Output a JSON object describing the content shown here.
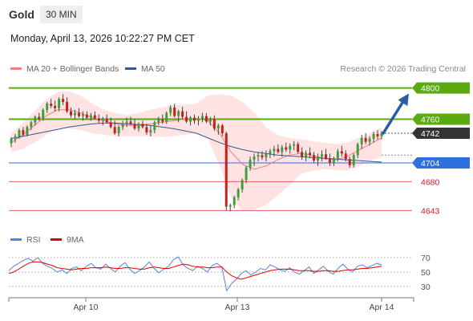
{
  "header": {
    "title": "Gold",
    "timeframe": "30 MIN"
  },
  "timestamp": "Monday, April 13, 2026 10:22:27 PM CET",
  "legend": {
    "ma20_bb": {
      "label": "MA 20 + Bollinger Bands",
      "color": "#f08080"
    },
    "ma50": {
      "label": "MA 50",
      "color": "#34578f"
    }
  },
  "credit": "Research © 2026 Trading Central",
  "rsi_legend": {
    "rsi": {
      "label": "RSI",
      "color": "#5a82d8"
    },
    "ma9": {
      "label": "9MA",
      "color": "#e00000"
    }
  },
  "colors": {
    "up_candle": "#3aa13a",
    "down_candle": "#c81e1e",
    "green_level": "#5aaa10",
    "blue_level": "#2f6fe0",
    "red_level": "#e06060",
    "price_tag": "#333333",
    "arrow": "#2a5d9f",
    "bb_fill": "#ffd9d9"
  },
  "chart_data": [
    {
      "type": "candlestick",
      "title": "Gold",
      "timeframe": "30 MIN",
      "ylim": [
        4630,
        4815
      ],
      "x_ticks": [
        "Apr 10",
        "Apr 13",
        "Apr 14"
      ],
      "levels": [
        {
          "value": 4800,
          "label": "4800",
          "kind": "resistance"
        },
        {
          "value": 4760,
          "label": "4760",
          "kind": "resistance"
        },
        {
          "value": 4742,
          "label": "4742",
          "kind": "last_price"
        },
        {
          "value": 4704,
          "label": "4704",
          "kind": "pivot"
        },
        {
          "value": 4680,
          "label": "4680",
          "kind": "support"
        },
        {
          "value": 4643,
          "label": "4643",
          "kind": "support"
        }
      ],
      "forecast": {
        "from": 4742,
        "to": 4800,
        "direction": "up"
      },
      "ohlc": [
        [
          4729,
          4737,
          4724,
          4735
        ],
        [
          4735,
          4741,
          4730,
          4738
        ],
        [
          4738,
          4748,
          4735,
          4746
        ],
        [
          4746,
          4750,
          4738,
          4740
        ],
        [
          4740,
          4752,
          4738,
          4750
        ],
        [
          4750,
          4758,
          4746,
          4756
        ],
        [
          4756,
          4765,
          4752,
          4763
        ],
        [
          4763,
          4768,
          4758,
          4761
        ],
        [
          4761,
          4774,
          4758,
          4772
        ],
        [
          4772,
          4782,
          4768,
          4780
        ],
        [
          4780,
          4786,
          4774,
          4777
        ],
        [
          4777,
          4784,
          4770,
          4774
        ],
        [
          4774,
          4788,
          4770,
          4786
        ],
        [
          4786,
          4792,
          4778,
          4782
        ],
        [
          4782,
          4788,
          4768,
          4770
        ],
        [
          4770,
          4775,
          4762,
          4765
        ],
        [
          4765,
          4772,
          4760,
          4768
        ],
        [
          4768,
          4774,
          4762,
          4764
        ],
        [
          4764,
          4770,
          4758,
          4766
        ],
        [
          4766,
          4770,
          4760,
          4762
        ],
        [
          4762,
          4768,
          4758,
          4765
        ],
        [
          4765,
          4770,
          4760,
          4761
        ],
        [
          4761,
          4766,
          4755,
          4758
        ],
        [
          4758,
          4763,
          4752,
          4760
        ],
        [
          4760,
          4766,
          4755,
          4756
        ],
        [
          4756,
          4762,
          4748,
          4750
        ],
        [
          4750,
          4758,
          4740,
          4742
        ],
        [
          4742,
          4752,
          4738,
          4750
        ],
        [
          4750,
          4758,
          4746,
          4755
        ],
        [
          4755,
          4762,
          4750,
          4757
        ],
        [
          4757,
          4763,
          4752,
          4754
        ],
        [
          4754,
          4760,
          4746,
          4748
        ],
        [
          4748,
          4756,
          4744,
          4754
        ],
        [
          4754,
          4758,
          4748,
          4750
        ],
        [
          4750,
          4754,
          4740,
          4743
        ],
        [
          4743,
          4752,
          4738,
          4746
        ],
        [
          4746,
          4758,
          4742,
          4756
        ],
        [
          4756,
          4763,
          4752,
          4759
        ],
        [
          4759,
          4766,
          4754,
          4757
        ],
        [
          4757,
          4770,
          4754,
          4768
        ],
        [
          4768,
          4778,
          4764,
          4775
        ],
        [
          4775,
          4780,
          4762,
          4764
        ],
        [
          4764,
          4772,
          4756,
          4770
        ],
        [
          4770,
          4776,
          4760,
          4763
        ],
        [
          4763,
          4770,
          4755,
          4757
        ],
        [
          4757,
          4764,
          4752,
          4762
        ],
        [
          4762,
          4766,
          4754,
          4758
        ],
        [
          4758,
          4764,
          4752,
          4761
        ],
        [
          4761,
          4768,
          4756,
          4764
        ],
        [
          4764,
          4768,
          4755,
          4757
        ],
        [
          4757,
          4763,
          4752,
          4760
        ],
        [
          4760,
          4765,
          4745,
          4748
        ],
        [
          4748,
          4754,
          4740,
          4752
        ],
        [
          4752,
          4754,
          4738,
          4742
        ],
        [
          4742,
          4744,
          4643,
          4648
        ],
        [
          4648,
          4652,
          4642,
          4650
        ],
        [
          4650,
          4662,
          4646,
          4660
        ],
        [
          4660,
          4672,
          4656,
          4670
        ],
        [
          4670,
          4684,
          4666,
          4682
        ],
        [
          4682,
          4700,
          4678,
          4698
        ],
        [
          4698,
          4712,
          4694,
          4708
        ],
        [
          4708,
          4716,
          4700,
          4712
        ],
        [
          4712,
          4718,
          4706,
          4714
        ],
        [
          4714,
          4719,
          4708,
          4711
        ],
        [
          4711,
          4720,
          4706,
          4716
        ],
        [
          4716,
          4722,
          4710,
          4719
        ],
        [
          4719,
          4726,
          4712,
          4722
        ],
        [
          4722,
          4728,
          4716,
          4718
        ],
        [
          4718,
          4727,
          4712,
          4724
        ],
        [
          4724,
          4730,
          4718,
          4721
        ],
        [
          4721,
          4729,
          4716,
          4726
        ],
        [
          4726,
          4732,
          4720,
          4728
        ],
        [
          4728,
          4731,
          4716,
          4718
        ],
        [
          4718,
          4724,
          4708,
          4712
        ],
        [
          4712,
          4720,
          4706,
          4717
        ],
        [
          4717,
          4724,
          4710,
          4714
        ],
        [
          4714,
          4718,
          4704,
          4707
        ],
        [
          4707,
          4716,
          4700,
          4712
        ],
        [
          4712,
          4720,
          4706,
          4715
        ],
        [
          4715,
          4722,
          4708,
          4709
        ],
        [
          4709,
          4716,
          4700,
          4704
        ],
        [
          4704,
          4712,
          4700,
          4710
        ],
        [
          4710,
          4722,
          4706,
          4719
        ],
        [
          4719,
          4726,
          4712,
          4716
        ],
        [
          4716,
          4720,
          4706,
          4709
        ],
        [
          4709,
          4712,
          4698,
          4701
        ],
        [
          4701,
          4716,
          4698,
          4714
        ],
        [
          4714,
          4730,
          4710,
          4728
        ],
        [
          4728,
          4740,
          4722,
          4736
        ],
        [
          4736,
          4742,
          4728,
          4731
        ],
        [
          4731,
          4738,
          4726,
          4735
        ],
        [
          4735,
          4744,
          4730,
          4741
        ],
        [
          4741,
          4746,
          4734,
          4738
        ],
        [
          4738,
          4745,
          4734,
          4742
        ]
      ],
      "ma50": [
        4735,
        4738,
        4741,
        4744,
        4747,
        4750,
        4752,
        4754,
        4755,
        4755,
        4754,
        4753,
        4752,
        4750,
        4748,
        4745,
        4742,
        4736,
        4730,
        4725,
        4721,
        4718,
        4716,
        4714,
        4713,
        4712,
        4711,
        4710,
        4709,
        4708,
        4707,
        4706,
        4705
      ],
      "ma20": [
        4730,
        4740,
        4752,
        4764,
        4772,
        4772,
        4768,
        4762,
        4758,
        4754,
        4752,
        4752,
        4754,
        4756,
        4758,
        4760,
        4761,
        4758,
        4742,
        4718,
        4702,
        4696,
        4700,
        4708,
        4714,
        4716,
        4714,
        4710,
        4708,
        4712,
        4720,
        4728,
        4736
      ],
      "bb_upper": [
        4742,
        4755,
        4770,
        4785,
        4795,
        4796,
        4790,
        4780,
        4772,
        4768,
        4765,
        4768,
        4772,
        4775,
        4778,
        4779,
        4780,
        4790,
        4792,
        4790,
        4782,
        4768,
        4750,
        4740,
        4736,
        4734,
        4732,
        4730,
        4728,
        4730,
        4736,
        4742,
        4750
      ],
      "bb_lower": [
        4718,
        4722,
        4730,
        4740,
        4748,
        4748,
        4746,
        4742,
        4740,
        4738,
        4738,
        4738,
        4738,
        4737,
        4738,
        4740,
        4742,
        4735,
        4700,
        4660,
        4642,
        4644,
        4650,
        4662,
        4675,
        4690,
        4694,
        4696,
        4695,
        4694,
        4700,
        4706,
        4712
      ]
    },
    {
      "type": "line",
      "title": "RSI",
      "ylim": [
        20,
        80
      ],
      "y_ticks": [
        70,
        50,
        30
      ],
      "series": [
        {
          "name": "RSI",
          "values": [
            52,
            58,
            62,
            66,
            69,
            65,
            70,
            62,
            58,
            55,
            50,
            53,
            48,
            55,
            57,
            52,
            58,
            62,
            56,
            54,
            61,
            55,
            50,
            58,
            63,
            54,
            48,
            52,
            57,
            64,
            55,
            49,
            54,
            58,
            67,
            71,
            60,
            55,
            52,
            58,
            55,
            50,
            59,
            62,
            57,
            24,
            34,
            40,
            48,
            52,
            46,
            50,
            55,
            53,
            60,
            57,
            53,
            51,
            56,
            50,
            47,
            52,
            57,
            48,
            53,
            58,
            51,
            47,
            55,
            61,
            54,
            50,
            58,
            60,
            56,
            59,
            62,
            60
          ]
        },
        {
          "name": "9MA",
          "values": [
            48,
            50,
            54,
            58,
            62,
            64,
            64,
            63,
            61,
            59,
            56,
            55,
            54,
            53,
            54,
            55,
            55,
            56,
            56,
            56,
            57,
            56,
            55,
            55,
            56,
            56,
            55,
            54,
            54,
            56,
            57,
            56,
            55,
            55,
            57,
            59,
            61,
            60,
            58,
            57,
            57,
            56,
            56,
            57,
            57,
            50,
            45,
            42,
            40,
            42,
            44,
            46,
            48,
            50,
            52,
            53,
            54,
            54,
            54,
            53,
            52,
            52,
            52,
            51,
            51,
            52,
            52,
            51,
            51,
            52,
            53,
            53,
            54,
            55,
            55,
            56,
            57,
            58
          ]
        }
      ]
    }
  ]
}
